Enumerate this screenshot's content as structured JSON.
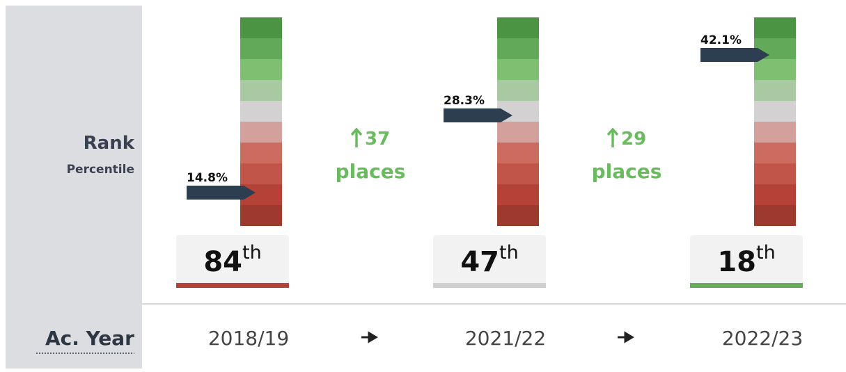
{
  "labels": {
    "rank": "Rank",
    "percentile": "Percentile",
    "year": "Ac. Year"
  },
  "scale": {
    "colors": [
      "#4a9444",
      "#62a95a",
      "#7fbf72",
      "#a9c9a2",
      "#d3d1d1",
      "#d4a09b",
      "#cc6b5f",
      "#c15549",
      "#b54237",
      "#9c3a2e"
    ]
  },
  "columns": [
    {
      "percent": "14.8%",
      "rank": 84,
      "suffix": "th",
      "color": "#b5433a",
      "year": "2018/19"
    },
    {
      "percent": "28.3%",
      "rank": 47,
      "suffix": "th",
      "color": "#d0d0d0",
      "year": "2021/22"
    },
    {
      "percent": "42.1%",
      "rank": 18,
      "suffix": "th",
      "color": "#6aac5e",
      "year": "2022/23"
    }
  ],
  "changes": [
    {
      "value": 37,
      "unit": "places"
    },
    {
      "value": 29,
      "unit": "places"
    }
  ]
}
